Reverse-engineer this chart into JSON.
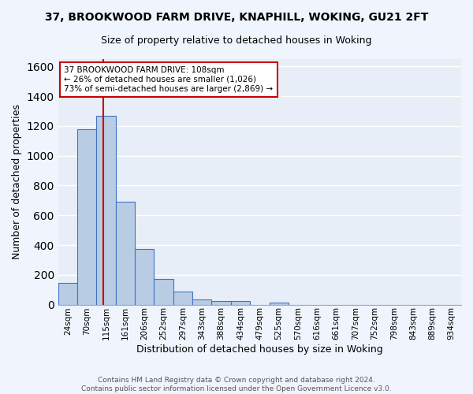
{
  "title1": "37, BROOKWOOD FARM DRIVE, KNAPHILL, WOKING, GU21 2FT",
  "title2": "Size of property relative to detached houses in Woking",
  "xlabel": "Distribution of detached houses by size in Woking",
  "ylabel": "Number of detached properties",
  "bar_labels": [
    "24sqm",
    "70sqm",
    "115sqm",
    "161sqm",
    "206sqm",
    "252sqm",
    "297sqm",
    "343sqm",
    "388sqm",
    "434sqm",
    "479sqm",
    "525sqm",
    "570sqm",
    "616sqm",
    "661sqm",
    "707sqm",
    "752sqm",
    "798sqm",
    "843sqm",
    "889sqm",
    "934sqm"
  ],
  "bar_values": [
    148,
    1180,
    1270,
    690,
    375,
    170,
    88,
    35,
    25,
    22,
    0,
    15,
    0,
    0,
    0,
    0,
    0,
    0,
    0,
    0,
    0
  ],
  "bar_color": "#b8cce4",
  "bar_edge_color": "#4472c4",
  "background_color": "#e8eef8",
  "grid_color": "#ffffff",
  "annotation_text": "37 BROOKWOOD FARM DRIVE: 108sqm\n← 26% of detached houses are smaller (1,026)\n73% of semi-detached houses are larger (2,869) →",
  "annotation_box_color": "#ffffff",
  "annotation_box_edge": "#cc0000",
  "vline_color": "#cc0000",
  "footer_text": "Contains HM Land Registry data © Crown copyright and database right 2024.\nContains public sector information licensed under the Open Government Licence v3.0.",
  "ylim": [
    0,
    1650
  ],
  "fig_bg": "#f0f4fc"
}
